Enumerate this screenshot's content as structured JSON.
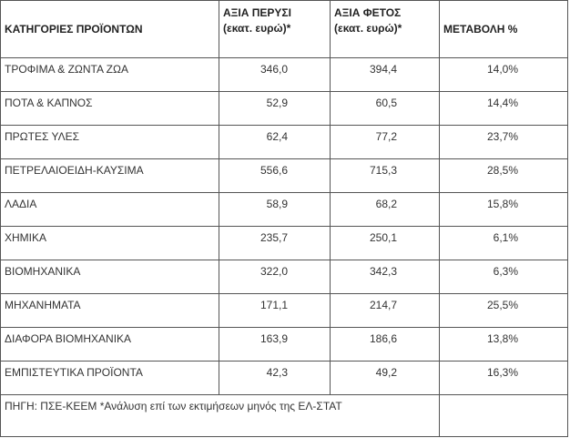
{
  "headers": {
    "category": "ΚΑΤΗΓΟΡΙΕΣ ΠΡΟΪΟΝΤΩΝ",
    "last_year_line1": "ΑΞΙΑ ΠΕΡΥΣΙ",
    "last_year_line2": "(εκατ. ευρώ)*",
    "this_year_line1": "ΑΞΙΑ ΦΕΤΟΣ",
    "this_year_line2": "(εκατ. ευρώ)*",
    "change": "ΜΕΤΑΒΟΛΗ %"
  },
  "rows": [
    {
      "category": "ΤΡΟΦΙΜΑ & ΖΩΝΤΑ ΖΩΑ",
      "last_year": "346,0",
      "this_year": "394,4",
      "change": "14,0%"
    },
    {
      "category": "ΠΟΤΑ & ΚΑΠΝΟΣ",
      "last_year": "52,9",
      "this_year": "60,5",
      "change": "14,4%"
    },
    {
      "category": "ΠΡΩΤΕΣ ΥΛΕΣ",
      "last_year": "62,4",
      "this_year": "77,2",
      "change": "23,7%"
    },
    {
      "category": "ΠΕΤΡΕΛΑΙΟΕΙΔΗ-ΚΑΥΣΙΜΑ",
      "last_year": "556,6",
      "this_year": "715,3",
      "change": "28,5%"
    },
    {
      "category": "ΛΑΔΙΑ",
      "last_year": "58,9",
      "this_year": "68,2",
      "change": "15,8%"
    },
    {
      "category": "ΧΗΜΙΚΑ",
      "last_year": "235,7",
      "this_year": "250,1",
      "change": "6,1%"
    },
    {
      "category": "ΒΙΟΜΗΧΑΝΙΚΑ",
      "last_year": "322,0",
      "this_year": "342,3",
      "change": "6,3%"
    },
    {
      "category": "ΜΗΧΑΝΗΜΑΤΑ",
      "last_year": "171,1",
      "this_year": "214,7",
      "change": "25,5%"
    },
    {
      "category": "ΔΙΑΦΟΡΑ ΒΙΟΜΗΧΑΝΙΚΑ",
      "last_year": "163,9",
      "this_year": "186,6",
      "change": "13,8%"
    },
    {
      "category": "ΕΜΠΙΣΤΕΥΤΙΚΑ ΠΡΟΪΟΝΤΑ",
      "last_year": "42,3",
      "this_year": "49,2",
      "change": "16,3%"
    }
  ],
  "footer": {
    "source": "ΠΗΓΗ: ΠΣΕ-ΚΕΕΜ *Ανάλυση επί των εκτιμήσεων μηνός της ΕΛ-ΣΤΑΤ",
    "empty": ""
  }
}
